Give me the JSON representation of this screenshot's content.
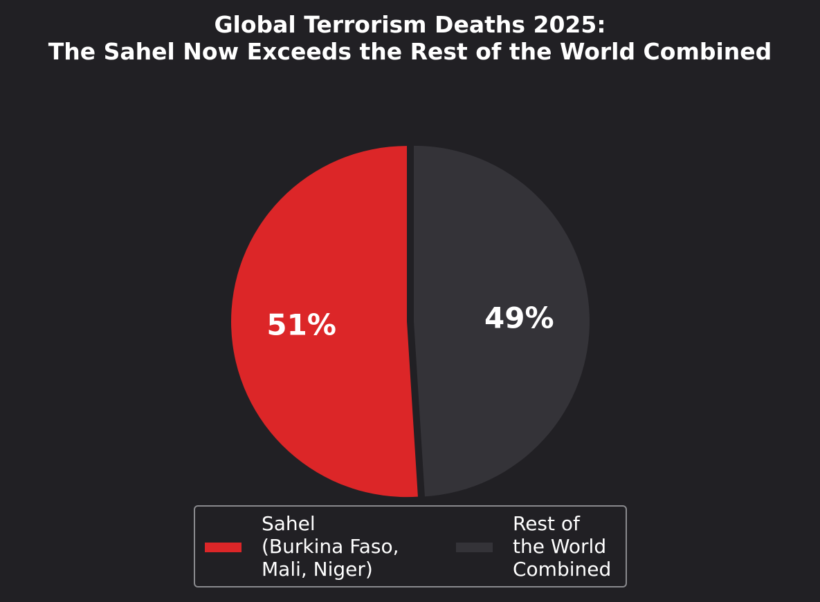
{
  "title": {
    "line1": "Global Terrorism Deaths 2025:",
    "line2": "The Sahel Now Exceeds the Rest of the World Combined"
  },
  "chart_data": {
    "type": "pie",
    "title": "Global Terrorism Deaths 2025: The Sahel Now Exceeds the Rest of the World Combined",
    "slices": [
      {
        "name": "Sahel (Burkina Faso, Mali, Niger)",
        "value": 51,
        "label": "51%",
        "color": "#dc2628"
      },
      {
        "name": "Rest of the World Combined",
        "value": 49,
        "label": "49%",
        "color": "#343338"
      }
    ],
    "legend_position": "bottom",
    "legend": [
      {
        "lines": [
          "Sahel",
          "(Burkina Faso,",
          "Mali, Niger)"
        ],
        "color": "#dc2628"
      },
      {
        "lines": [
          "Rest of",
          "the World",
          "Combined"
        ],
        "color": "#343338"
      }
    ]
  },
  "colors": {
    "background": "#212024",
    "legend_border": "#8a8a8e",
    "text": "#ffffff"
  }
}
